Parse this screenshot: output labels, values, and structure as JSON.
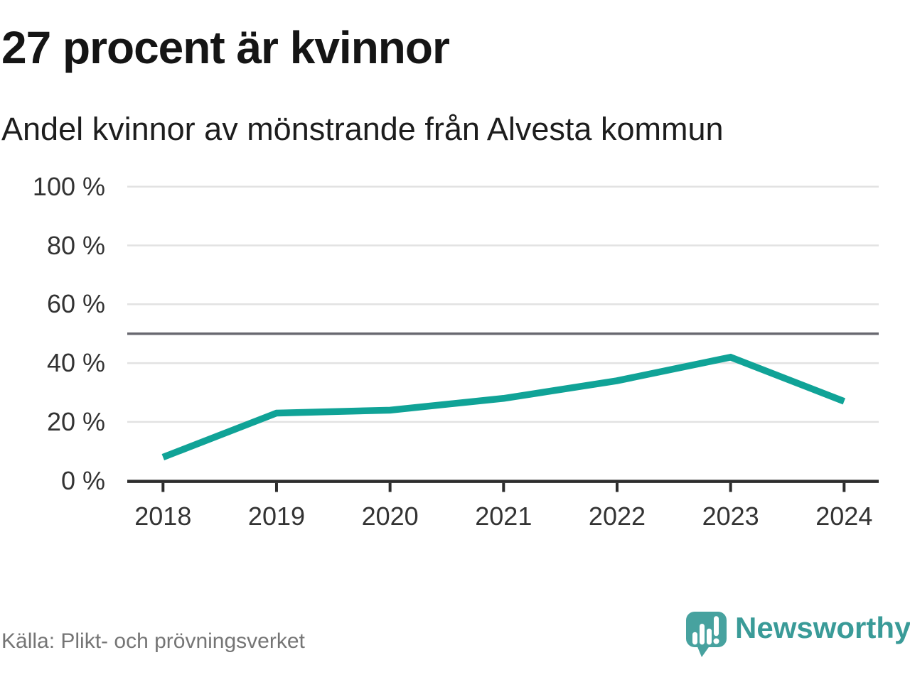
{
  "header": {
    "title": "27 procent är kvinnor",
    "subtitle": "Andel kvinnor av mönstrande från Alvesta kommun"
  },
  "footer": {
    "source": "Källa: Plikt- och prövningsverket",
    "logo_text": "Newsworthy"
  },
  "colors": {
    "line": "#10a397",
    "grid": "#e2e2e2",
    "reference_line": "#686870",
    "axis": "#2d2d2d",
    "tick_label": "#333333",
    "logo_mark": "#47a29f",
    "logo_text": "#3a9b98"
  },
  "chart_data": {
    "type": "line",
    "title": "Andel kvinnor av mönstrande från Alvesta kommun",
    "x": [
      2018,
      2019,
      2020,
      2021,
      2022,
      2023,
      2024
    ],
    "series": [
      {
        "name": "Andel kvinnor",
        "values": [
          8,
          23,
          24,
          28,
          34,
          42,
          27
        ]
      }
    ],
    "ylim": [
      0,
      100
    ],
    "yticks": [
      0,
      20,
      40,
      60,
      80,
      100
    ],
    "ytick_suffix": " %",
    "reference_line": 50,
    "grid": true,
    "legend": false
  }
}
